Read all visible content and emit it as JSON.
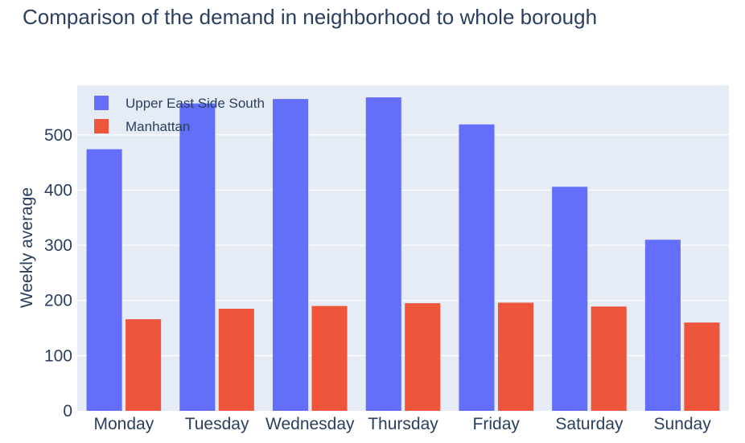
{
  "chart_data": {
    "type": "bar",
    "title": "Comparison of the demand in neighborhood to whole borough",
    "xlabel": "",
    "ylabel": "Weekly average",
    "categories": [
      "Monday",
      "Tuesday",
      "Wednesday",
      "Thursday",
      "Friday",
      "Saturday",
      "Sunday"
    ],
    "series": [
      {
        "name": "Upper East Side South",
        "values": [
          474,
          557,
          565,
          568,
          519,
          406,
          310
        ]
      },
      {
        "name": "Manhattan",
        "values": [
          166,
          185,
          190,
          195,
          196,
          189,
          160
        ]
      }
    ],
    "ylim": [
      0,
      590
    ],
    "yticks": [
      "0",
      "100",
      "200",
      "300",
      "400",
      "500"
    ],
    "legend_position": "top-left",
    "grid": true,
    "colors": {
      "series": [
        "#636efa",
        "#ef553b"
      ],
      "plot_background": "#e5ecf6",
      "grid": "#ffffff",
      "text": "#2a3f5f"
    }
  }
}
